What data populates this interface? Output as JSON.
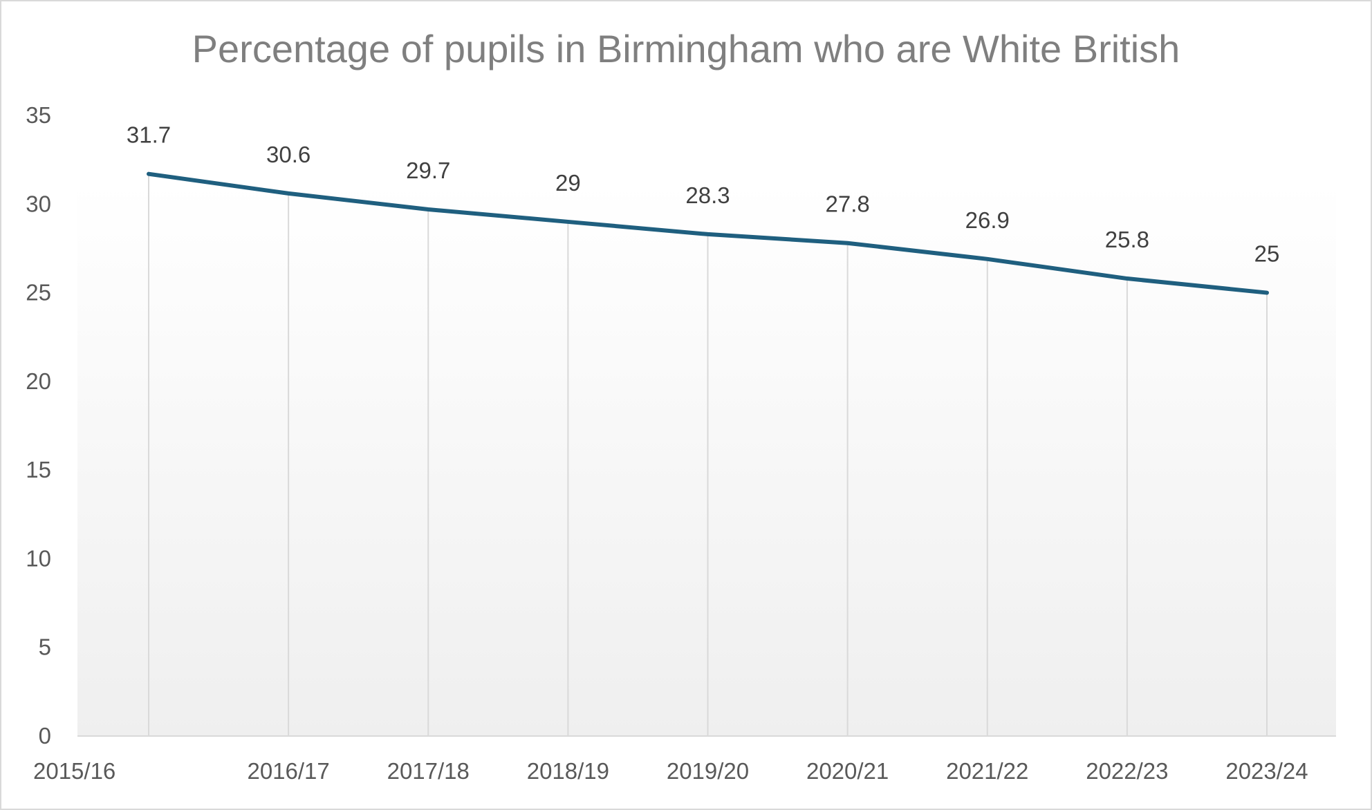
{
  "chart_data": {
    "type": "line",
    "title": "Percentage of pupils in Birmingham who are White British",
    "categories": [
      "2015/16",
      "2016/17",
      "2017/18",
      "2018/19",
      "2019/20",
      "2020/21",
      "2021/22",
      "2022/23",
      "2023/24"
    ],
    "values": [
      31.7,
      30.6,
      29.7,
      29,
      28.3,
      27.8,
      26.9,
      25.8,
      25
    ],
    "value_labels": [
      "31.7",
      "30.6",
      "29.7",
      "29",
      "28.3",
      "27.8",
      "26.9",
      "25.8",
      "25"
    ],
    "y_ticks": [
      "0",
      "5",
      "10",
      "15",
      "20",
      "25",
      "30",
      "35"
    ],
    "ylim": [
      0,
      35
    ],
    "xlabel": "",
    "ylabel": "",
    "grid": "vertical drop lines",
    "legend": "none",
    "colors": {
      "line": "#1f5f7f",
      "dropline": "#d9d9d9",
      "axis": "#d9d9d9"
    }
  }
}
